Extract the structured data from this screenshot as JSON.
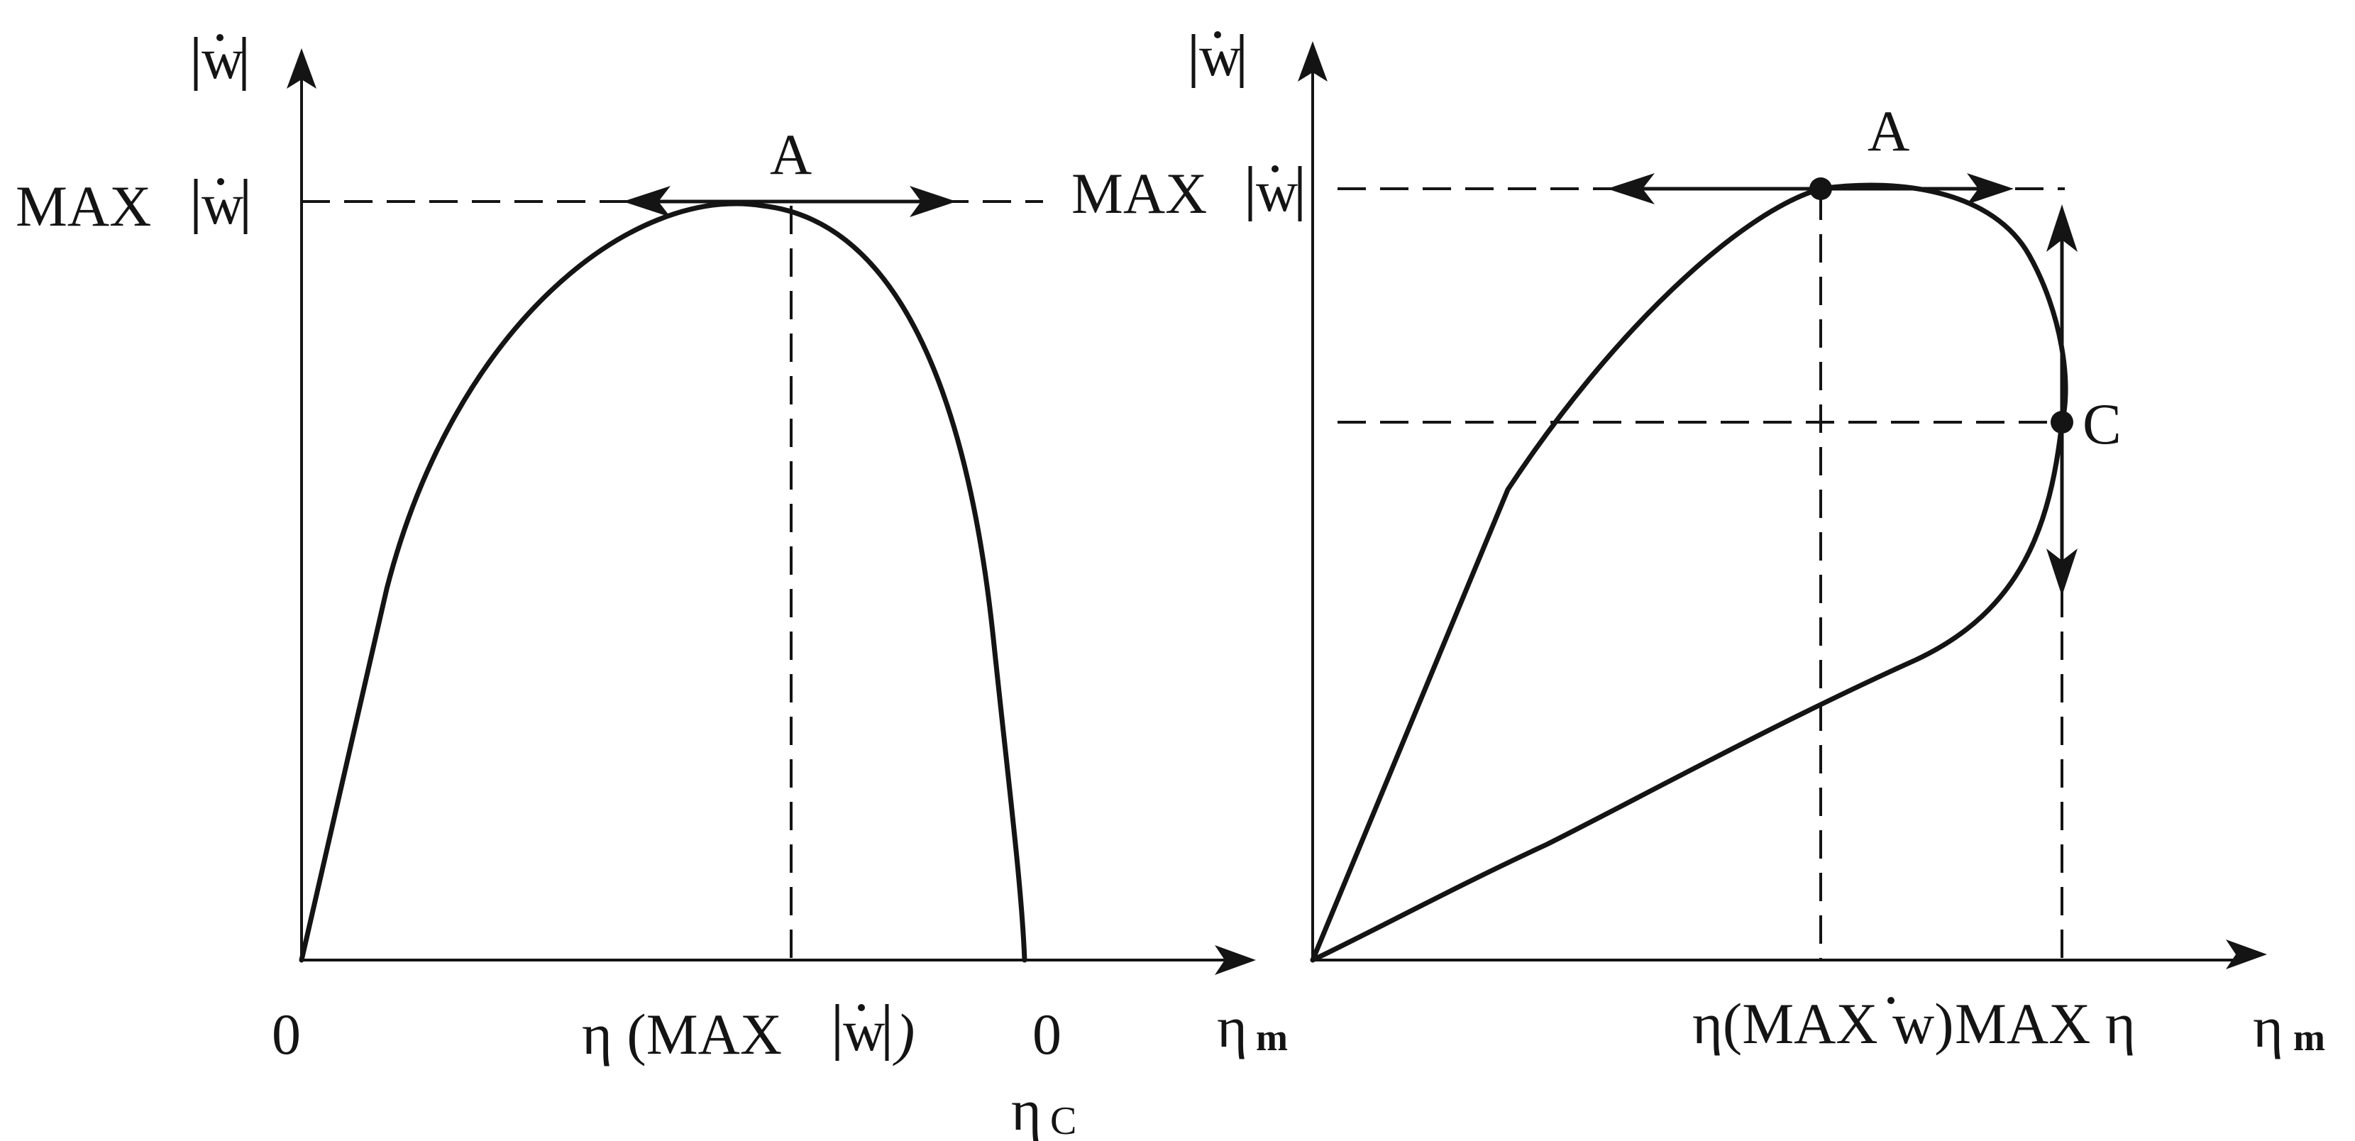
{
  "left_panel": {
    "y_axis_label": "w",
    "y_max_label": "MAX",
    "y_max_symbol": "w",
    "point_a": "A",
    "x_origin": "0",
    "x_tick_mid": "η (MAX",
    "x_tick_mid_symbol": "w",
    "x_tick_mid_close": ")",
    "x_tick_end": "0",
    "x_tick_end_sub": "η",
    "x_tick_end_sub_index": "C",
    "x_axis_label": "η",
    "x_axis_label_sub": "m"
  },
  "right_panel": {
    "y_axis_label": "w",
    "y_max_label": "MAX",
    "y_max_symbol": "w",
    "point_a": "A",
    "point_c": "C",
    "x_tick_mid": "η(MAX w)",
    "x_tick_max": "MAX η",
    "x_axis_label": "η",
    "x_axis_label_sub": "m"
  },
  "colors": {
    "ink": "#141414",
    "background": "#ffffff"
  }
}
